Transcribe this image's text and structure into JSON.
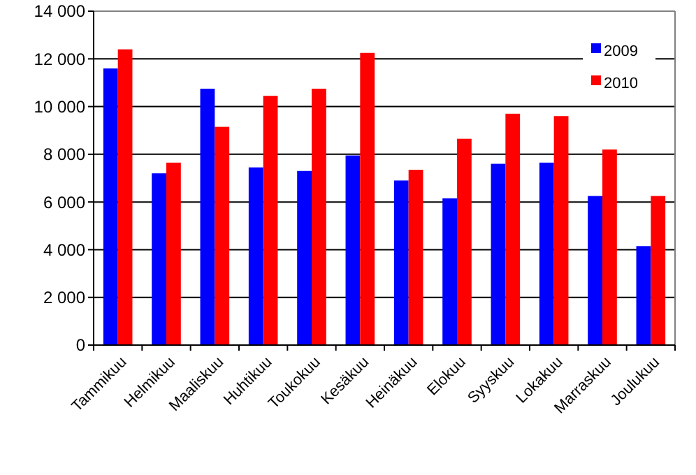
{
  "chart_data": {
    "type": "bar",
    "categories": [
      "Tammikuu",
      "Helmikuu",
      "Maaliskuu",
      "Huhtikuu",
      "Toukokuu",
      "Kesäkuu",
      "Heinäkuu",
      "Elokuu",
      "Syyskuu",
      "Lokakuu",
      "Marraskuu",
      "Joulukuu"
    ],
    "series": [
      {
        "name": "2009",
        "color": "#0000ff",
        "values": [
          11600,
          7200,
          10750,
          7450,
          7300,
          7950,
          6900,
          6150,
          7600,
          7650,
          6250,
          4150
        ]
      },
      {
        "name": "2010",
        "color": "#ff0000",
        "values": [
          12400,
          7650,
          9150,
          10450,
          10750,
          12250,
          7350,
          8650,
          9700,
          9600,
          8200,
          6250
        ]
      }
    ],
    "ylim": [
      0,
      14000
    ],
    "yticks": [
      {
        "value": 0,
        "label": "0"
      },
      {
        "value": 2000,
        "label": "2 000"
      },
      {
        "value": 4000,
        "label": "4 000"
      },
      {
        "value": 6000,
        "label": "6 000"
      },
      {
        "value": 8000,
        "label": "8 000"
      },
      {
        "value": 10000,
        "label": "10 000"
      },
      {
        "value": 12000,
        "label": "12 000"
      },
      {
        "value": 14000,
        "label": "14 000"
      }
    ],
    "grid": "y",
    "legend": "top right"
  }
}
